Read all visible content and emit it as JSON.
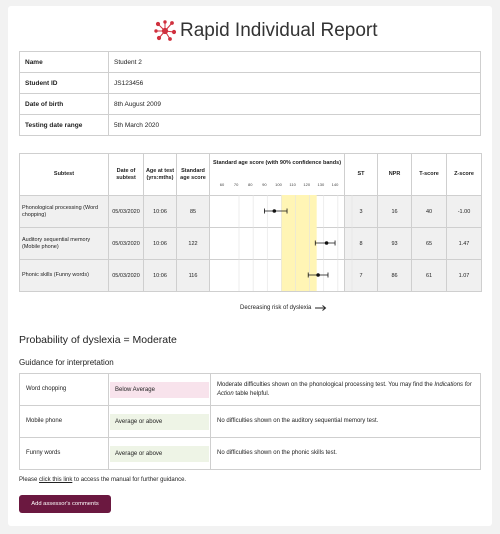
{
  "header": {
    "title": "Rapid Individual Report",
    "logo_icon": "network-logo-icon",
    "logo_color": "#d0313f"
  },
  "student": [
    {
      "label": "Name",
      "value": "Student 2"
    },
    {
      "label": "Student ID",
      "value": "JS123456"
    },
    {
      "label": "Date of birth",
      "value": "8th August 2009"
    },
    {
      "label": "Testing date range",
      "value": "5th March 2020"
    }
  ],
  "scores": {
    "headers": {
      "subtest": "Subtest",
      "date": "Date of subtest",
      "age": "Age at test (yrs:mths)",
      "sas": "Standard age score",
      "band": "Standard age score (with 90% confidence bands)",
      "st": "ST",
      "npr": "NPR",
      "tscore": "T-score",
      "zscore": "Z-score"
    },
    "ticks": [
      "60",
      "70",
      "80",
      "90",
      "100",
      "110",
      "120",
      "130",
      "140"
    ],
    "highlight_range": [
      90,
      115
    ],
    "highlight_color": "#fff5b5",
    "rows": [
      {
        "subtest": "Phonological processing (Word chopping)",
        "date": "05/03/2020",
        "age": "10:06",
        "sas": "85",
        "ci": [
          78,
          94
        ],
        "st": "3",
        "npr": "16",
        "tscore": "40",
        "zscore": "-1.00"
      },
      {
        "subtest": "Auditory sequential memory (Mobile phone)",
        "date": "05/03/2020",
        "age": "10:06",
        "sas": "122",
        "ci": [
          114,
          128
        ],
        "st": "8",
        "npr": "93",
        "tscore": "65",
        "zscore": "1.47"
      },
      {
        "subtest": "Phonic skills (Funny words)",
        "date": "05/03/2020",
        "age": "10:06",
        "sas": "116",
        "ci": [
          109,
          123
        ],
        "st": "7",
        "npr": "86",
        "tscore": "61",
        "zscore": "1.07"
      }
    ]
  },
  "risk_label": "Decreasing risk of dyslexia",
  "probability": "Probability of dyslexia = Moderate",
  "guidance": {
    "title": "Guidance for interpretation",
    "rows": [
      {
        "label": "Word chopping",
        "band": "Below Average",
        "band_color": "#f8e3ec",
        "pre": "Moderate difficulties shown on the phonological processing test. You may find the ",
        "emph": "Indications for Action",
        "post": " table helpful."
      },
      {
        "label": "Mobile phone",
        "band": "Average or above",
        "band_color": "#eef4e6",
        "pre": "No difficulties shown on the auditory sequential memory test.",
        "emph": "",
        "post": ""
      },
      {
        "label": "Funny words",
        "band": "Average or above",
        "band_color": "#eef4e6",
        "pre": "No difficulties shown on the phonic skills test.",
        "emph": "",
        "post": ""
      }
    ]
  },
  "manual": {
    "pre": "Please ",
    "link": "click this link",
    "post": " to access the manual for further guidance."
  },
  "button": {
    "label": "Add assessor's comments",
    "color": "#6b1840"
  }
}
